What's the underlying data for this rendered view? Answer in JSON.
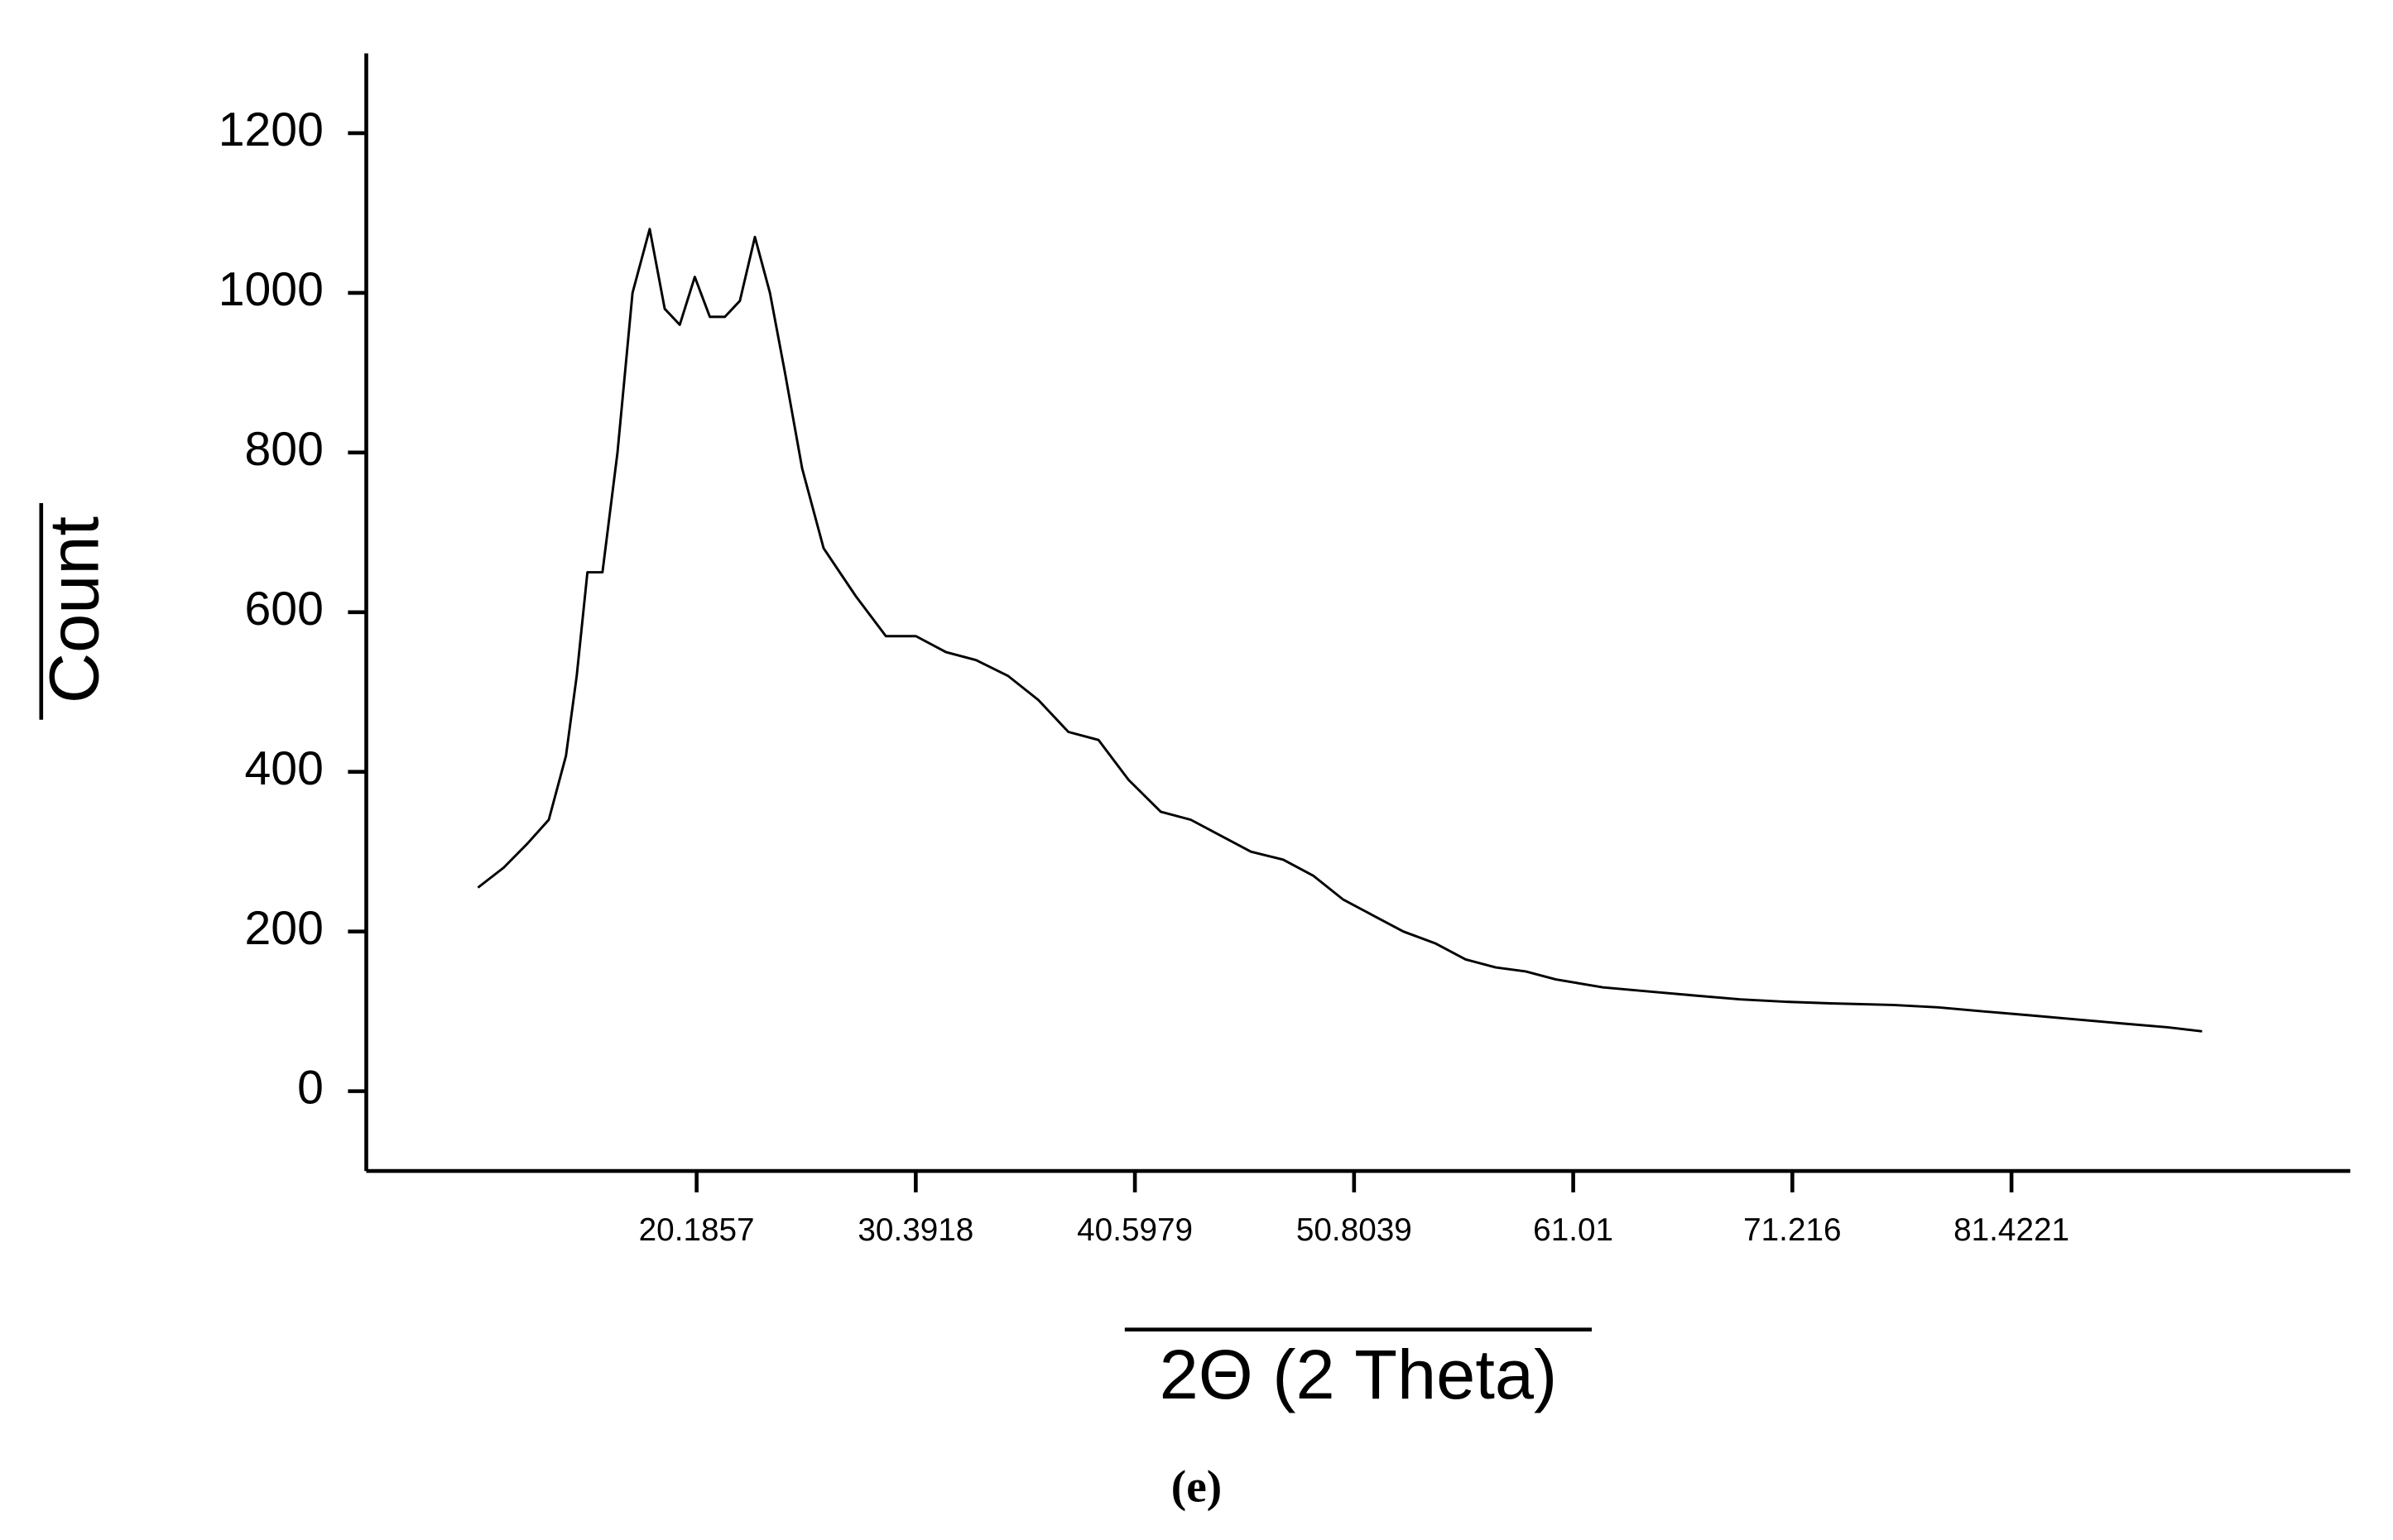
{
  "chart_data": {
    "type": "line",
    "x_label": "2Θ (2 Theta)",
    "y_label": "Count",
    "caption": "(e)",
    "xlim": [
      4.8,
      97.2
    ],
    "xticks": [
      20.1857,
      30.3918,
      40.5979,
      50.8039,
      61.01,
      71.216,
      81.4221
    ],
    "ylim": [
      -100,
      1300
    ],
    "yticks": [
      0,
      200,
      400,
      600,
      800,
      1000,
      1200
    ],
    "grid": false,
    "color": "#000000",
    "x": [
      10.0,
      11.2,
      12.3,
      13.3,
      14.1,
      14.6,
      15.1,
      15.8,
      16.5,
      17.2,
      18.0,
      18.7,
      19.4,
      20.1,
      20.8,
      21.5,
      22.2,
      22.9,
      23.6,
      24.3,
      25.1,
      26.1,
      27.6,
      29.0,
      30.4,
      31.8,
      33.2,
      34.7,
      36.1,
      37.5,
      38.9,
      40.3,
      41.8,
      43.2,
      44.6,
      46.0,
      47.5,
      48.9,
      50.3,
      51.7,
      53.1,
      54.6,
      56.0,
      57.4,
      58.8,
      60.2,
      62.4,
      64.5,
      66.6,
      68.8,
      70.9,
      73.0,
      75.9,
      78.0,
      80.1,
      82.3,
      84.4,
      86.5,
      88.7,
      90.3
    ],
    "values": [
      255,
      280,
      310,
      340,
      420,
      520,
      650,
      650,
      800,
      1000,
      1080,
      980,
      960,
      1020,
      970,
      970,
      990,
      1070,
      1000,
      900,
      780,
      680,
      620,
      570,
      570,
      550,
      540,
      520,
      490,
      450,
      440,
      390,
      350,
      340,
      320,
      300,
      290,
      270,
      240,
      220,
      200,
      185,
      165,
      155,
      150,
      140,
      130,
      125,
      120,
      115,
      112,
      110,
      108,
      105,
      100,
      95,
      90,
      85,
      80,
      75
    ]
  }
}
